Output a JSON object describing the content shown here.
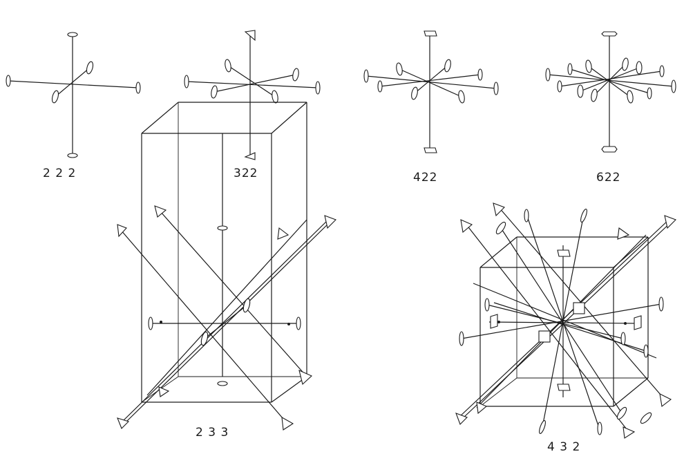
{
  "diagrams": [
    {
      "label": "2 2 2"
    },
    {
      "label": "322"
    },
    {
      "label": "422"
    },
    {
      "label": "622"
    },
    {
      "label": "2 3 3"
    },
    {
      "label": "4 3 2"
    }
  ]
}
